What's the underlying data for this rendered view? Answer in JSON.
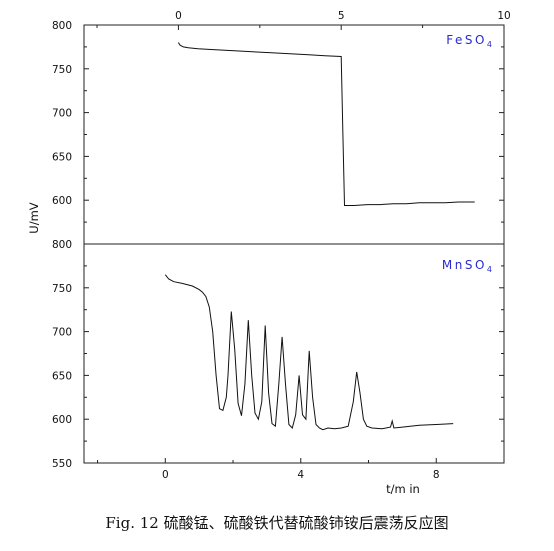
{
  "caption": "Fig. 12 硫酸锰、硫酸铁代替硫酸铈铵后震荡反应图",
  "chart_data": [
    {
      "type": "line",
      "legend": {
        "label": "FeSO",
        "subscript": "4",
        "placement": "top-right"
      },
      "ylabel": "U/mV",
      "ylim": [
        550,
        800
      ],
      "yticks": [
        600,
        650,
        700,
        750,
        800
      ],
      "ytick_labels": [
        "600",
        "650",
        "700",
        "750",
        "800"
      ],
      "xlim": [
        -2.9,
        10
      ],
      "xticks": [
        0,
        5,
        10
      ],
      "xtick_labels": [
        "0",
        "5",
        "10"
      ],
      "series": [
        {
          "x": [
            0,
            0.05,
            0.15,
            0.3,
            0.6,
            1.0,
            2.0,
            3.0,
            4.0,
            4.5,
            5.0,
            5.05,
            5.1,
            5.4,
            5.8,
            6.2,
            6.6,
            7.0,
            7.4,
            7.8,
            8.2,
            8.6,
            9.1
          ],
          "y": [
            780,
            777,
            775,
            774,
            773,
            772,
            770,
            768,
            766,
            765,
            764,
            680,
            594,
            594,
            595,
            595,
            596,
            596,
            597,
            597,
            597,
            598,
            598
          ]
        }
      ]
    },
    {
      "type": "line",
      "legend": {
        "label": "MnSO",
        "subscript": "4",
        "placement": "top-right"
      },
      "ylabel": "U/mV",
      "ylim": [
        550,
        800
      ],
      "yticks": [
        550,
        600,
        650,
        700,
        750,
        800
      ],
      "ytick_labels": [
        "550",
        "600",
        "650",
        "700",
        "750",
        "800"
      ],
      "xlabel": "t/m in",
      "xlim": [
        -2.4,
        10
      ],
      "xticks": [
        0,
        4,
        8
      ],
      "xtick_labels": [
        "0",
        "4",
        "8"
      ],
      "series": [
        {
          "x": [
            0,
            0.1,
            0.25,
            0.5,
            0.8,
            1.0,
            1.1,
            1.2,
            1.3,
            1.4,
            1.5,
            1.6,
            1.7,
            1.8,
            1.85,
            1.95,
            2.05,
            2.15,
            2.25,
            2.35,
            2.45,
            2.55,
            2.65,
            2.75,
            2.85,
            2.95,
            3.05,
            3.15,
            3.25,
            3.35,
            3.45,
            3.55,
            3.65,
            3.75,
            3.85,
            3.95,
            4.05,
            4.15,
            4.25,
            4.35,
            4.45,
            4.55,
            4.65,
            4.8,
            5.0,
            5.2,
            5.4,
            5.55,
            5.65,
            5.75,
            5.85,
            5.95,
            6.1,
            6.4,
            6.65,
            6.7,
            6.75,
            7.0,
            7.5,
            8.0,
            8.5
          ],
          "y": [
            765,
            760,
            757,
            755,
            752,
            748,
            745,
            740,
            728,
            700,
            650,
            612,
            610,
            625,
            650,
            723,
            680,
            618,
            604,
            640,
            713,
            650,
            607,
            600,
            620,
            707,
            630,
            595,
            592,
            640,
            694,
            640,
            594,
            590,
            605,
            650,
            605,
            600,
            678,
            625,
            594,
            590,
            588,
            590,
            589,
            590,
            592,
            620,
            654,
            630,
            600,
            592,
            590,
            589,
            591,
            598,
            590,
            591,
            593,
            594,
            595
          ]
        }
      ]
    }
  ]
}
